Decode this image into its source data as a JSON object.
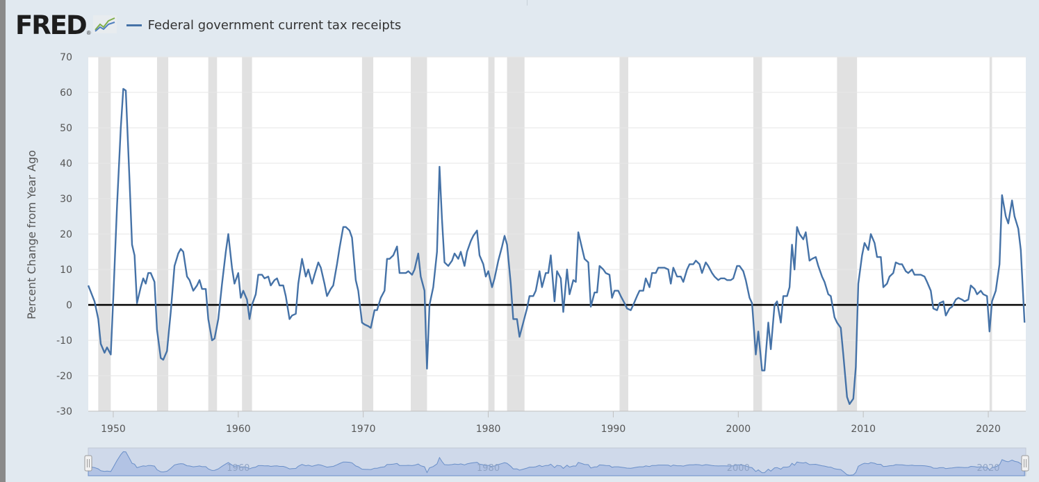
{
  "header": {
    "logo_text": "FRED",
    "logo_registered": "®",
    "legend_label": "Federal government current tax receipts"
  },
  "colors": {
    "series": "#4572a7",
    "recession": "#e1e1e1",
    "background": "#e1e9f0",
    "plot_background": "#ffffff",
    "zero_line": "#000000",
    "navigator_fill": "#b2c3e4",
    "navigator_line": "#6a8fc8"
  },
  "icons": [
    "fred-logo-chart-icon",
    "navigator-handle-icon"
  ],
  "chart_data": {
    "type": "line",
    "ylabel": "Percent Change from Year Ago",
    "ylim": [
      -30,
      70
    ],
    "xlim": [
      1948.0,
      2023.0
    ],
    "y_ticks": [
      -30,
      -20,
      -10,
      0,
      10,
      20,
      30,
      40,
      50,
      60,
      70
    ],
    "x_ticks": [
      1950,
      1960,
      1970,
      1980,
      1990,
      2000,
      2010,
      2020
    ],
    "grid": true,
    "reference_line_y": 0,
    "recessions": [
      [
        1948.8,
        1949.8
      ],
      [
        1953.5,
        1954.4
      ],
      [
        1957.6,
        1958.3
      ],
      [
        1960.3,
        1961.1
      ],
      [
        1969.9,
        1970.8
      ],
      [
        1973.8,
        1975.1
      ],
      [
        1980.0,
        1980.5
      ],
      [
        1981.5,
        1982.9
      ],
      [
        1990.5,
        1991.2
      ],
      [
        2001.2,
        2001.9
      ],
      [
        2007.9,
        2009.5
      ],
      [
        2020.1,
        2020.3
      ]
    ],
    "navigator_labels": [
      "1960",
      "1980",
      "2000",
      "2020"
    ],
    "series": [
      {
        "name": "Federal government current tax receipts",
        "points": [
          [
            1948.0,
            5.5
          ],
          [
            1948.5,
            1.0
          ],
          [
            1948.8,
            -4
          ],
          [
            1949.0,
            -11
          ],
          [
            1949.3,
            -13.5
          ],
          [
            1949.5,
            -12
          ],
          [
            1949.8,
            -14
          ],
          [
            1950.0,
            2
          ],
          [
            1950.3,
            28
          ],
          [
            1950.6,
            50
          ],
          [
            1950.8,
            61
          ],
          [
            1951.0,
            60.5
          ],
          [
            1951.3,
            35
          ],
          [
            1951.5,
            17
          ],
          [
            1951.7,
            14
          ],
          [
            1951.9,
            0.5
          ],
          [
            1952.2,
            5
          ],
          [
            1952.4,
            7.5
          ],
          [
            1952.6,
            6
          ],
          [
            1952.8,
            9
          ],
          [
            1953.0,
            9
          ],
          [
            1953.3,
            6.5
          ],
          [
            1953.5,
            -7
          ],
          [
            1953.8,
            -15
          ],
          [
            1954.0,
            -15.5
          ],
          [
            1954.3,
            -13
          ],
          [
            1954.6,
            -2
          ],
          [
            1954.9,
            11
          ],
          [
            1955.2,
            14.5
          ],
          [
            1955.4,
            15.8
          ],
          [
            1955.6,
            15
          ],
          [
            1955.9,
            8
          ],
          [
            1956.1,
            7
          ],
          [
            1956.4,
            4
          ],
          [
            1956.7,
            5.5
          ],
          [
            1956.9,
            7
          ],
          [
            1957.1,
            4.5
          ],
          [
            1957.4,
            4.5
          ],
          [
            1957.6,
            -4
          ],
          [
            1957.9,
            -10
          ],
          [
            1958.1,
            -9.5
          ],
          [
            1958.4,
            -4
          ],
          [
            1958.7,
            6
          ],
          [
            1959.0,
            15
          ],
          [
            1959.2,
            20
          ],
          [
            1959.5,
            10.5
          ],
          [
            1959.7,
            6
          ],
          [
            1960.0,
            9
          ],
          [
            1960.2,
            2
          ],
          [
            1960.4,
            4
          ],
          [
            1960.7,
            1.5
          ],
          [
            1960.9,
            -4
          ],
          [
            1961.1,
            0
          ],
          [
            1961.4,
            3
          ],
          [
            1961.6,
            8.5
          ],
          [
            1961.9,
            8.5
          ],
          [
            1962.1,
            7.5
          ],
          [
            1962.4,
            8
          ],
          [
            1962.6,
            5.5
          ],
          [
            1962.9,
            7
          ],
          [
            1963.1,
            7.5
          ],
          [
            1963.3,
            5.5
          ],
          [
            1963.6,
            5.5
          ],
          [
            1963.8,
            2.5
          ],
          [
            1964.1,
            -4
          ],
          [
            1964.3,
            -3
          ],
          [
            1964.6,
            -2.5
          ],
          [
            1964.8,
            6
          ],
          [
            1965.1,
            13
          ],
          [
            1965.4,
            8
          ],
          [
            1965.6,
            10
          ],
          [
            1965.9,
            6
          ],
          [
            1966.1,
            8.5
          ],
          [
            1966.4,
            12
          ],
          [
            1966.6,
            10.5
          ],
          [
            1966.9,
            6
          ],
          [
            1967.1,
            2.5
          ],
          [
            1967.4,
            4.5
          ],
          [
            1967.6,
            5.5
          ],
          [
            1967.9,
            11.5
          ],
          [
            1968.1,
            16
          ],
          [
            1968.4,
            22
          ],
          [
            1968.6,
            22
          ],
          [
            1968.9,
            21
          ],
          [
            1969.1,
            19
          ],
          [
            1969.4,
            7
          ],
          [
            1969.6,
            4
          ],
          [
            1969.9,
            -5
          ],
          [
            1970.1,
            -5.5
          ],
          [
            1970.4,
            -6
          ],
          [
            1970.6,
            -6.5
          ],
          [
            1970.9,
            -1.5
          ],
          [
            1971.1,
            -1.5
          ],
          [
            1971.4,
            2
          ],
          [
            1971.7,
            4
          ],
          [
            1971.9,
            13
          ],
          [
            1972.1,
            13
          ],
          [
            1972.4,
            14
          ],
          [
            1972.7,
            16.5
          ],
          [
            1972.9,
            9
          ],
          [
            1973.1,
            9
          ],
          [
            1973.4,
            9
          ],
          [
            1973.6,
            9.5
          ],
          [
            1973.9,
            8.5
          ],
          [
            1974.1,
            10
          ],
          [
            1974.4,
            14.5
          ],
          [
            1974.6,
            8
          ],
          [
            1974.9,
            4
          ],
          [
            1975.1,
            -18
          ],
          [
            1975.3,
            0
          ],
          [
            1975.6,
            5
          ],
          [
            1975.9,
            15
          ],
          [
            1976.1,
            39
          ],
          [
            1976.3,
            24
          ],
          [
            1976.5,
            12
          ],
          [
            1976.8,
            11
          ],
          [
            1977.1,
            12.5
          ],
          [
            1977.3,
            14.5
          ],
          [
            1977.6,
            13
          ],
          [
            1977.8,
            15
          ],
          [
            1978.1,
            11
          ],
          [
            1978.3,
            15
          ],
          [
            1978.6,
            18
          ],
          [
            1978.8,
            19.5
          ],
          [
            1979.1,
            21
          ],
          [
            1979.3,
            14
          ],
          [
            1979.6,
            11.5
          ],
          [
            1979.8,
            8
          ],
          [
            1980.0,
            9.5
          ],
          [
            1980.3,
            5
          ],
          [
            1980.5,
            7.5
          ],
          [
            1980.8,
            12.5
          ],
          [
            1981.1,
            16.5
          ],
          [
            1981.3,
            19.5
          ],
          [
            1981.5,
            17
          ],
          [
            1981.8,
            6
          ],
          [
            1982.0,
            -4
          ],
          [
            1982.3,
            -4
          ],
          [
            1982.5,
            -9
          ],
          [
            1982.8,
            -5
          ],
          [
            1983.1,
            -1
          ],
          [
            1983.3,
            2.5
          ],
          [
            1983.6,
            2.5
          ],
          [
            1983.8,
            4
          ],
          [
            1984.1,
            9.5
          ],
          [
            1984.3,
            5
          ],
          [
            1984.6,
            9
          ],
          [
            1984.8,
            9
          ],
          [
            1985.0,
            14
          ],
          [
            1985.3,
            1
          ],
          [
            1985.5,
            9.5
          ],
          [
            1985.8,
            7.5
          ],
          [
            1986.0,
            -2
          ],
          [
            1986.3,
            10
          ],
          [
            1986.5,
            3
          ],
          [
            1986.8,
            7
          ],
          [
            1987.0,
            6.5
          ],
          [
            1987.2,
            20.5
          ],
          [
            1987.5,
            16
          ],
          [
            1987.7,
            13
          ],
          [
            1988.0,
            12
          ],
          [
            1988.2,
            -0.5
          ],
          [
            1988.5,
            3.5
          ],
          [
            1988.7,
            3.5
          ],
          [
            1988.9,
            11
          ],
          [
            1989.2,
            10
          ],
          [
            1989.4,
            9
          ],
          [
            1989.7,
            8.5
          ],
          [
            1989.9,
            2
          ],
          [
            1990.1,
            4
          ],
          [
            1990.4,
            4
          ],
          [
            1990.6,
            2.5
          ],
          [
            1990.9,
            0.5
          ],
          [
            1991.1,
            -1
          ],
          [
            1991.4,
            -1.5
          ],
          [
            1991.6,
            0
          ],
          [
            1991.9,
            2.5
          ],
          [
            1992.1,
            4
          ],
          [
            1992.4,
            4
          ],
          [
            1992.6,
            7.5
          ],
          [
            1992.9,
            5
          ],
          [
            1993.1,
            9
          ],
          [
            1993.4,
            9
          ],
          [
            1993.6,
            10.5
          ],
          [
            1993.9,
            10.5
          ],
          [
            1994.1,
            10.5
          ],
          [
            1994.4,
            10
          ],
          [
            1994.6,
            6
          ],
          [
            1994.8,
            10.5
          ],
          [
            1995.1,
            8
          ],
          [
            1995.4,
            8
          ],
          [
            1995.6,
            6.5
          ],
          [
            1995.9,
            10
          ],
          [
            1996.1,
            11.5
          ],
          [
            1996.4,
            11.5
          ],
          [
            1996.6,
            12.5
          ],
          [
            1996.9,
            11.5
          ],
          [
            1997.1,
            9
          ],
          [
            1997.4,
            12
          ],
          [
            1997.6,
            11
          ],
          [
            1997.9,
            9
          ],
          [
            1998.1,
            8
          ],
          [
            1998.4,
            7
          ],
          [
            1998.6,
            7.5
          ],
          [
            1998.9,
            7.5
          ],
          [
            1999.1,
            7
          ],
          [
            1999.4,
            7
          ],
          [
            1999.6,
            7.5
          ],
          [
            1999.9,
            11
          ],
          [
            2000.1,
            11
          ],
          [
            2000.4,
            9.5
          ],
          [
            2000.6,
            7
          ],
          [
            2000.9,
            2
          ],
          [
            2001.1,
            0.5
          ],
          [
            2001.4,
            -14
          ],
          [
            2001.6,
            -7.5
          ],
          [
            2001.9,
            -18.5
          ],
          [
            2002.1,
            -18.5
          ],
          [
            2002.4,
            -5
          ],
          [
            2002.6,
            -12.5
          ],
          [
            2002.9,
            0
          ],
          [
            2003.1,
            1
          ],
          [
            2003.4,
            -5
          ],
          [
            2003.6,
            2.5
          ],
          [
            2003.9,
            2.5
          ],
          [
            2004.1,
            5
          ],
          [
            2004.3,
            17
          ],
          [
            2004.5,
            10
          ],
          [
            2004.7,
            22
          ],
          [
            2004.9,
            20
          ],
          [
            2005.2,
            18.5
          ],
          [
            2005.4,
            20.5
          ],
          [
            2005.7,
            12.5
          ],
          [
            2005.9,
            13
          ],
          [
            2006.2,
            13.5
          ],
          [
            2006.4,
            11
          ],
          [
            2006.7,
            8
          ],
          [
            2006.9,
            6.5
          ],
          [
            2007.2,
            3
          ],
          [
            2007.4,
            2.5
          ],
          [
            2007.7,
            -3.5
          ],
          [
            2007.9,
            -5
          ],
          [
            2008.2,
            -6.5
          ],
          [
            2008.4,
            -14
          ],
          [
            2008.7,
            -26
          ],
          [
            2008.9,
            -28
          ],
          [
            2009.2,
            -26.5
          ],
          [
            2009.4,
            -17.5
          ],
          [
            2009.6,
            6
          ],
          [
            2009.9,
            14
          ],
          [
            2010.1,
            17.5
          ],
          [
            2010.4,
            15.5
          ],
          [
            2010.6,
            20
          ],
          [
            2010.9,
            17.5
          ],
          [
            2011.1,
            13.5
          ],
          [
            2011.4,
            13.5
          ],
          [
            2011.6,
            5
          ],
          [
            2011.9,
            6
          ],
          [
            2012.1,
            8
          ],
          [
            2012.4,
            9
          ],
          [
            2012.6,
            12
          ],
          [
            2012.9,
            11.5
          ],
          [
            2013.1,
            11.5
          ],
          [
            2013.4,
            9.5
          ],
          [
            2013.6,
            9
          ],
          [
            2013.9,
            10
          ],
          [
            2014.1,
            8.5
          ],
          [
            2014.4,
            8.5
          ],
          [
            2014.6,
            8.5
          ],
          [
            2014.9,
            8
          ],
          [
            2015.1,
            6.5
          ],
          [
            2015.4,
            4
          ],
          [
            2015.6,
            -1
          ],
          [
            2015.9,
            -1.5
          ],
          [
            2016.1,
            0.5
          ],
          [
            2016.4,
            1
          ],
          [
            2016.6,
            -3
          ],
          [
            2016.9,
            -1
          ],
          [
            2017.1,
            -0.5
          ],
          [
            2017.4,
            1.5
          ],
          [
            2017.6,
            2
          ],
          [
            2017.9,
            1.5
          ],
          [
            2018.1,
            1
          ],
          [
            2018.4,
            1.5
          ],
          [
            2018.6,
            5.5
          ],
          [
            2018.9,
            4.5
          ],
          [
            2019.1,
            3
          ],
          [
            2019.4,
            4
          ],
          [
            2019.6,
            3
          ],
          [
            2019.9,
            2.5
          ],
          [
            2020.1,
            -7.5
          ],
          [
            2020.3,
            1
          ],
          [
            2020.6,
            4
          ],
          [
            2020.9,
            11.5
          ],
          [
            2021.1,
            31
          ],
          [
            2021.4,
            25
          ],
          [
            2021.6,
            23
          ],
          [
            2021.9,
            29.5
          ],
          [
            2022.1,
            25
          ],
          [
            2022.4,
            21.5
          ],
          [
            2022.6,
            15.5
          ],
          [
            2022.9,
            -5
          ]
        ]
      }
    ]
  }
}
